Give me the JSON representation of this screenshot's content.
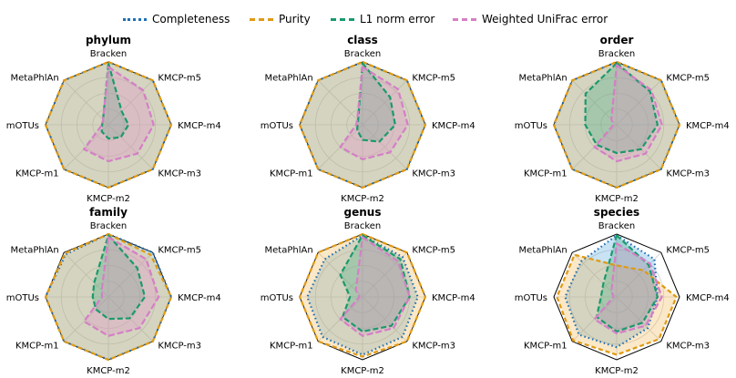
{
  "legend": {
    "items": [
      {
        "label": "Completeness",
        "color": "#1f6fb4",
        "dash": "dotted"
      },
      {
        "label": "Purity",
        "color": "#e09a12",
        "dash": "dashed"
      },
      {
        "label": "L1 norm error",
        "color": "#1a9a6c",
        "dash": "dashed"
      },
      {
        "label": "Weighted UniFrac error",
        "color": "#d47fc6",
        "dash": "dashed"
      }
    ]
  },
  "chart_data": [
    {
      "type": "radar",
      "title": "phylum",
      "axes": [
        "Bracken",
        "KMCP-m5",
        "KMCP-m4",
        "KMCP-m3",
        "KMCP-m2",
        "KMCP-m1",
        "mOTUs",
        "MetaPhlAn"
      ],
      "range": [
        0,
        1
      ],
      "series": [
        {
          "name": "Completeness",
          "values": [
            1.0,
            1.0,
            1.0,
            1.0,
            1.0,
            1.0,
            1.0,
            1.0
          ]
        },
        {
          "name": "Purity",
          "values": [
            1.0,
            1.0,
            1.0,
            1.0,
            1.0,
            1.0,
            1.0,
            1.0
          ]
        },
        {
          "name": "L1 norm error",
          "values": [
            0.98,
            0.3,
            0.32,
            0.28,
            0.22,
            0.15,
            0.1,
            0.12
          ]
        },
        {
          "name": "Weighted UniFrac error",
          "values": [
            0.92,
            0.78,
            0.72,
            0.65,
            0.58,
            0.55,
            0.1,
            0.12
          ]
        }
      ]
    },
    {
      "type": "radar",
      "title": "class",
      "axes": [
        "Bracken",
        "KMCP-m5",
        "KMCP-m4",
        "KMCP-m3",
        "KMCP-m2",
        "KMCP-m1",
        "mOTUs",
        "MetaPhlAn"
      ],
      "range": [
        0,
        1
      ],
      "series": [
        {
          "name": "Completeness",
          "values": [
            1.0,
            1.0,
            1.0,
            1.0,
            1.0,
            1.0,
            1.0,
            1.0
          ]
        },
        {
          "name": "Purity",
          "values": [
            1.0,
            1.0,
            1.0,
            1.0,
            1.0,
            1.0,
            1.0,
            1.0
          ]
        },
        {
          "name": "L1 norm error",
          "values": [
            0.98,
            0.62,
            0.52,
            0.38,
            0.24,
            0.12,
            0.08,
            0.1
          ]
        },
        {
          "name": "Weighted UniFrac error",
          "values": [
            0.92,
            0.8,
            0.72,
            0.62,
            0.55,
            0.5,
            0.1,
            0.12
          ]
        }
      ]
    },
    {
      "type": "radar",
      "title": "order",
      "axes": [
        "Bracken",
        "KMCP-m5",
        "KMCP-m4",
        "KMCP-m3",
        "KMCP-m2",
        "KMCP-m1",
        "mOTUs",
        "MetaPhlAn"
      ],
      "range": [
        0,
        1
      ],
      "series": [
        {
          "name": "Completeness",
          "values": [
            1.0,
            1.0,
            1.0,
            1.0,
            1.0,
            1.0,
            1.0,
            1.0
          ]
        },
        {
          "name": "Purity",
          "values": [
            1.0,
            1.0,
            1.0,
            1.0,
            1.0,
            1.0,
            1.0,
            1.0
          ]
        },
        {
          "name": "L1 norm error",
          "values": [
            0.98,
            0.75,
            0.65,
            0.55,
            0.45,
            0.45,
            0.5,
            0.7
          ]
        },
        {
          "name": "Weighted UniFrac error",
          "values": [
            0.95,
            0.78,
            0.72,
            0.65,
            0.58,
            0.5,
            0.05,
            0.12
          ]
        }
      ]
    },
    {
      "type": "radar",
      "title": "family",
      "axes": [
        "Bracken",
        "KMCP-m5",
        "KMCP-m4",
        "KMCP-m3",
        "KMCP-m2",
        "KMCP-m1",
        "mOTUs",
        "MetaPhlAn"
      ],
      "range": [
        0,
        1
      ],
      "series": [
        {
          "name": "Completeness",
          "values": [
            1.0,
            1.0,
            1.0,
            1.0,
            1.0,
            1.0,
            1.0,
            0.96
          ]
        },
        {
          "name": "Purity",
          "values": [
            1.0,
            0.95,
            1.0,
            1.0,
            1.0,
            1.0,
            1.0,
            0.98
          ]
        },
        {
          "name": "L1 norm error",
          "values": [
            0.98,
            0.65,
            0.58,
            0.48,
            0.35,
            0.28,
            0.25,
            0.32
          ]
        },
        {
          "name": "Weighted UniFrac error",
          "values": [
            0.95,
            0.85,
            0.8,
            0.7,
            0.62,
            0.55,
            0.1,
            0.15
          ]
        }
      ]
    },
    {
      "type": "radar",
      "title": "genus",
      "axes": [
        "Bracken",
        "KMCP-m5",
        "KMCP-m4",
        "KMCP-m3",
        "KMCP-m2",
        "KMCP-m1",
        "mOTUs",
        "MetaPhlAn"
      ],
      "range": [
        0,
        1
      ],
      "series": [
        {
          "name": "Completeness",
          "values": [
            0.98,
            0.9,
            0.88,
            0.9,
            0.92,
            0.9,
            0.88,
            0.85
          ]
        },
        {
          "name": "Purity",
          "values": [
            1.0,
            1.0,
            1.0,
            1.0,
            0.95,
            1.0,
            1.0,
            1.0
          ]
        },
        {
          "name": "L1 norm error",
          "values": [
            0.98,
            0.85,
            0.75,
            0.65,
            0.55,
            0.45,
            0.2,
            0.5
          ]
        },
        {
          "name": "Weighted UniFrac error",
          "values": [
            0.95,
            0.8,
            0.75,
            0.7,
            0.62,
            0.5,
            0.05,
            0.15
          ]
        }
      ]
    },
    {
      "type": "radar",
      "title": "species",
      "axes": [
        "Bracken",
        "KMCP-m5",
        "KMCP-m4",
        "KMCP-m3",
        "KMCP-m2",
        "KMCP-m1",
        "mOTUs",
        "MetaPhlAn"
      ],
      "range": [
        0,
        1
      ],
      "series": [
        {
          "name": "Completeness",
          "values": [
            0.98,
            0.85,
            0.65,
            0.7,
            0.8,
            0.85,
            0.82,
            0.8
          ]
        },
        {
          "name": "Purity",
          "values": [
            0.5,
            0.6,
            0.95,
            0.95,
            0.92,
            0.98,
            0.95,
            0.95
          ]
        },
        {
          "name": "L1 norm error",
          "values": [
            0.98,
            0.72,
            0.65,
            0.58,
            0.55,
            0.45,
            0.25,
            0.3
          ]
        },
        {
          "name": "Weighted UniFrac error",
          "values": [
            0.85,
            0.75,
            0.72,
            0.65,
            0.58,
            0.5,
            0.05,
            0.12
          ]
        }
      ]
    }
  ]
}
